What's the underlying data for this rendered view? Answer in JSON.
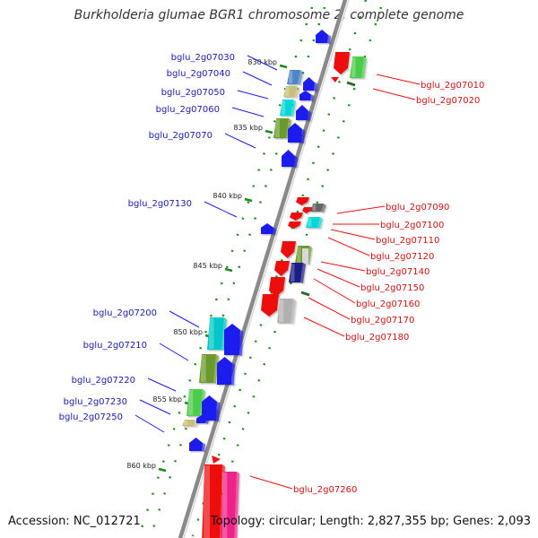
{
  "title": "Burkholderia glumae BGR1 chromosome 2, complete genome",
  "footer": {
    "accession": "Accession: NC_012721",
    "summary": "Topology: circular; Length: 2,827,355 bp; Genes: 2,093"
  },
  "colors": {
    "forward_strand": "#1a1aee",
    "reverse_strand": "#ee1111",
    "backbone": "#8a8a8a",
    "grid_dots": "#1a8a1a"
  },
  "scale_ticks": [
    "830 kbp",
    "835 kbp",
    "840 kbp",
    "845 kbp",
    "850 kbp",
    "855 kbp",
    "860 kbp"
  ],
  "forward_genes": [
    {
      "id": "bglu_2g07030",
      "box_color": "#4f86c6"
    },
    {
      "id": "bglu_2g07040",
      "box_color": "#c8c07a"
    },
    {
      "id": "bglu_2g07050",
      "box_color": "#00d8d8"
    },
    {
      "id": "bglu_2g07060",
      "box_color": "#6a9a2a"
    },
    {
      "id": "bglu_2g07070",
      "box_color": ""
    },
    {
      "id": "bglu_2g07130",
      "box_color": ""
    },
    {
      "id": "bglu_2g07200",
      "box_color": "#00c8c8"
    },
    {
      "id": "bglu_2g07210",
      "box_color": "#6a9a2a"
    },
    {
      "id": "bglu_2g07220",
      "box_color": "#4ccc4c"
    },
    {
      "id": "bglu_2g07230",
      "box_color": ""
    },
    {
      "id": "bglu_2g07250",
      "box_color": "#c8c07a"
    }
  ],
  "reverse_genes": [
    {
      "id": "bglu_2g07010",
      "box_color": "#4ccc4c"
    },
    {
      "id": "bglu_2g07020",
      "box_color": ""
    },
    {
      "id": "bglu_2g07090",
      "box_color": "#666666"
    },
    {
      "id": "bglu_2g07100",
      "box_color": "#00d8d8"
    },
    {
      "id": "bglu_2g07110",
      "box_color": ""
    },
    {
      "id": "bglu_2g07120",
      "box_color": "#6a9a2a"
    },
    {
      "id": "bglu_2g07140",
      "box_color": ""
    },
    {
      "id": "bglu_2g07150",
      "box_color": "#1a1a88"
    },
    {
      "id": "bglu_2g07160",
      "box_color": ""
    },
    {
      "id": "bglu_2g07170",
      "box_color": "#b0b0b0"
    },
    {
      "id": "bglu_2g07180",
      "box_color": ""
    },
    {
      "id": "bglu_2g07260",
      "box_color": "#ee2288"
    }
  ]
}
